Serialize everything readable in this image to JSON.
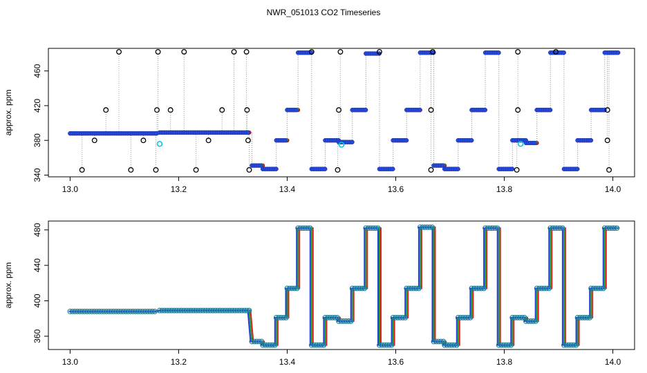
{
  "title": "NWR_051013  CO2 Timeseries",
  "chart_data": [
    {
      "type": "scatter",
      "title": "NWR_051013  CO2 Timeseries",
      "xlabel": "",
      "ylabel": "approx. ppm",
      "xlim": [
        12.96,
        14.04
      ],
      "ylim": [
        338,
        486
      ],
      "x_ticks": [
        13.0,
        13.2,
        13.4,
        13.6,
        13.8,
        14.0
      ],
      "x_tick_labels": [
        "13.0",
        "13.2",
        "13.4",
        "13.6",
        "13.8",
        "14.0"
      ],
      "y_ticks": [
        340,
        380,
        420,
        460
      ],
      "y_tick_labels": [
        "340",
        "380",
        "420",
        "460"
      ],
      "grid": false,
      "segments": [
        {
          "x0": 13.0,
          "x1": 13.16,
          "y": 388
        },
        {
          "x0": 13.165,
          "x1": 13.33,
          "y": 389
        },
        {
          "x0": 13.335,
          "x1": 13.355,
          "y": 351
        },
        {
          "x0": 13.355,
          "x1": 13.38,
          "y": 347
        },
        {
          "x0": 13.38,
          "x1": 13.4,
          "y": 380
        },
        {
          "x0": 13.4,
          "x1": 13.42,
          "y": 415
        },
        {
          "x0": 13.42,
          "x1": 13.445,
          "y": 481
        },
        {
          "x0": 13.445,
          "x1": 13.47,
          "y": 347
        },
        {
          "x0": 13.47,
          "x1": 13.495,
          "y": 380
        },
        {
          "x0": 13.495,
          "x1": 13.52,
          "y": 378
        },
        {
          "x0": 13.52,
          "x1": 13.545,
          "y": 415
        },
        {
          "x0": 13.545,
          "x1": 13.57,
          "y": 480
        },
        {
          "x0": 13.57,
          "x1": 13.595,
          "y": 347
        },
        {
          "x0": 13.595,
          "x1": 13.62,
          "y": 380
        },
        {
          "x0": 13.62,
          "x1": 13.645,
          "y": 415
        },
        {
          "x0": 13.645,
          "x1": 13.67,
          "y": 481
        },
        {
          "x0": 13.67,
          "x1": 13.69,
          "y": 351
        },
        {
          "x0": 13.69,
          "x1": 13.715,
          "y": 347
        },
        {
          "x0": 13.715,
          "x1": 13.74,
          "y": 380
        },
        {
          "x0": 13.74,
          "x1": 13.765,
          "y": 415
        },
        {
          "x0": 13.765,
          "x1": 13.79,
          "y": 481
        },
        {
          "x0": 13.79,
          "x1": 13.815,
          "y": 347
        },
        {
          "x0": 13.815,
          "x1": 13.84,
          "y": 380
        },
        {
          "x0": 13.84,
          "x1": 13.86,
          "y": 377
        },
        {
          "x0": 13.86,
          "x1": 13.885,
          "y": 415
        },
        {
          "x0": 13.885,
          "x1": 13.91,
          "y": 481
        },
        {
          "x0": 13.91,
          "x1": 13.935,
          "y": 347
        },
        {
          "x0": 13.935,
          "x1": 13.96,
          "y": 380
        },
        {
          "x0": 13.96,
          "x1": 13.985,
          "y": 415
        },
        {
          "x0": 13.985,
          "x1": 14.01,
          "y": 481
        }
      ],
      "outliers": [
        {
          "x": 13.022,
          "y": 346
        },
        {
          "x": 13.045,
          "y": 380
        },
        {
          "x": 13.066,
          "y": 415
        },
        {
          "x": 13.09,
          "y": 482
        },
        {
          "x": 13.112,
          "y": 346
        },
        {
          "x": 13.135,
          "y": 380
        },
        {
          "x": 13.16,
          "y": 415
        },
        {
          "x": 13.162,
          "y": 482
        },
        {
          "x": 13.158,
          "y": 346
        },
        {
          "x": 13.185,
          "y": 415
        },
        {
          "x": 13.21,
          "y": 482
        },
        {
          "x": 13.232,
          "y": 346
        },
        {
          "x": 13.255,
          "y": 380
        },
        {
          "x": 13.28,
          "y": 415
        },
        {
          "x": 13.302,
          "y": 482
        },
        {
          "x": 13.325,
          "y": 482
        },
        {
          "x": 13.326,
          "y": 415
        },
        {
          "x": 13.328,
          "y": 380
        },
        {
          "x": 13.33,
          "y": 346
        },
        {
          "x": 13.445,
          "y": 482
        },
        {
          "x": 13.493,
          "y": 346
        },
        {
          "x": 13.495,
          "y": 415
        },
        {
          "x": 13.498,
          "y": 482
        },
        {
          "x": 13.57,
          "y": 482
        },
        {
          "x": 13.665,
          "y": 415
        },
        {
          "x": 13.665,
          "y": 346
        },
        {
          "x": 13.668,
          "y": 482
        },
        {
          "x": 13.823,
          "y": 346
        },
        {
          "x": 13.825,
          "y": 482
        },
        {
          "x": 13.825,
          "y": 415
        },
        {
          "x": 13.895,
          "y": 482
        },
        {
          "x": 13.99,
          "y": 415
        },
        {
          "x": 13.99,
          "y": 380
        },
        {
          "x": 13.993,
          "y": 346
        }
      ],
      "cyan_points": [
        {
          "x": 13.165,
          "y": 376
        },
        {
          "x": 13.5,
          "y": 375
        },
        {
          "x": 13.83,
          "y": 376
        }
      ]
    },
    {
      "type": "scatter",
      "title": "",
      "xlabel": "",
      "ylabel": "approx. ppm",
      "xlim": [
        12.96,
        14.04
      ],
      "ylim": [
        345,
        490
      ],
      "x_ticks": [
        13.0,
        13.2,
        13.4,
        13.6,
        13.8,
        14.0
      ],
      "x_tick_labels": [
        "13.0",
        "13.2",
        "13.4",
        "13.6",
        "13.8",
        "14.0"
      ],
      "y_ticks": [
        360,
        400,
        440,
        480
      ],
      "y_tick_labels": [
        "360",
        "400",
        "440",
        "480"
      ],
      "grid": false,
      "segments": [
        {
          "x0": 13.0,
          "x1": 13.16,
          "y": 388
        },
        {
          "x0": 13.165,
          "x1": 13.33,
          "y": 389
        },
        {
          "x0": 13.335,
          "x1": 13.355,
          "y": 354
        },
        {
          "x0": 13.355,
          "x1": 13.38,
          "y": 350
        },
        {
          "x0": 13.38,
          "x1": 13.4,
          "y": 381
        },
        {
          "x0": 13.4,
          "x1": 13.42,
          "y": 414
        },
        {
          "x0": 13.42,
          "x1": 13.445,
          "y": 482
        },
        {
          "x0": 13.445,
          "x1": 13.47,
          "y": 350
        },
        {
          "x0": 13.47,
          "x1": 13.495,
          "y": 381
        },
        {
          "x0": 13.495,
          "x1": 13.52,
          "y": 377
        },
        {
          "x0": 13.52,
          "x1": 13.545,
          "y": 414
        },
        {
          "x0": 13.545,
          "x1": 13.57,
          "y": 482
        },
        {
          "x0": 13.57,
          "x1": 13.595,
          "y": 350
        },
        {
          "x0": 13.595,
          "x1": 13.62,
          "y": 381
        },
        {
          "x0": 13.62,
          "x1": 13.645,
          "y": 414
        },
        {
          "x0": 13.645,
          "x1": 13.67,
          "y": 483
        },
        {
          "x0": 13.67,
          "x1": 13.69,
          "y": 354
        },
        {
          "x0": 13.69,
          "x1": 13.715,
          "y": 350
        },
        {
          "x0": 13.715,
          "x1": 13.74,
          "y": 381
        },
        {
          "x0": 13.74,
          "x1": 13.765,
          "y": 414
        },
        {
          "x0": 13.765,
          "x1": 13.79,
          "y": 482
        },
        {
          "x0": 13.79,
          "x1": 13.815,
          "y": 350
        },
        {
          "x0": 13.815,
          "x1": 13.84,
          "y": 381
        },
        {
          "x0": 13.84,
          "x1": 13.86,
          "y": 377
        },
        {
          "x0": 13.86,
          "x1": 13.885,
          "y": 414
        },
        {
          "x0": 13.885,
          "x1": 13.91,
          "y": 482
        },
        {
          "x0": 13.91,
          "x1": 13.935,
          "y": 350
        },
        {
          "x0": 13.935,
          "x1": 13.96,
          "y": 381
        },
        {
          "x0": 13.96,
          "x1": 13.985,
          "y": 414
        },
        {
          "x0": 13.985,
          "x1": 14.01,
          "y": 482
        }
      ]
    }
  ]
}
